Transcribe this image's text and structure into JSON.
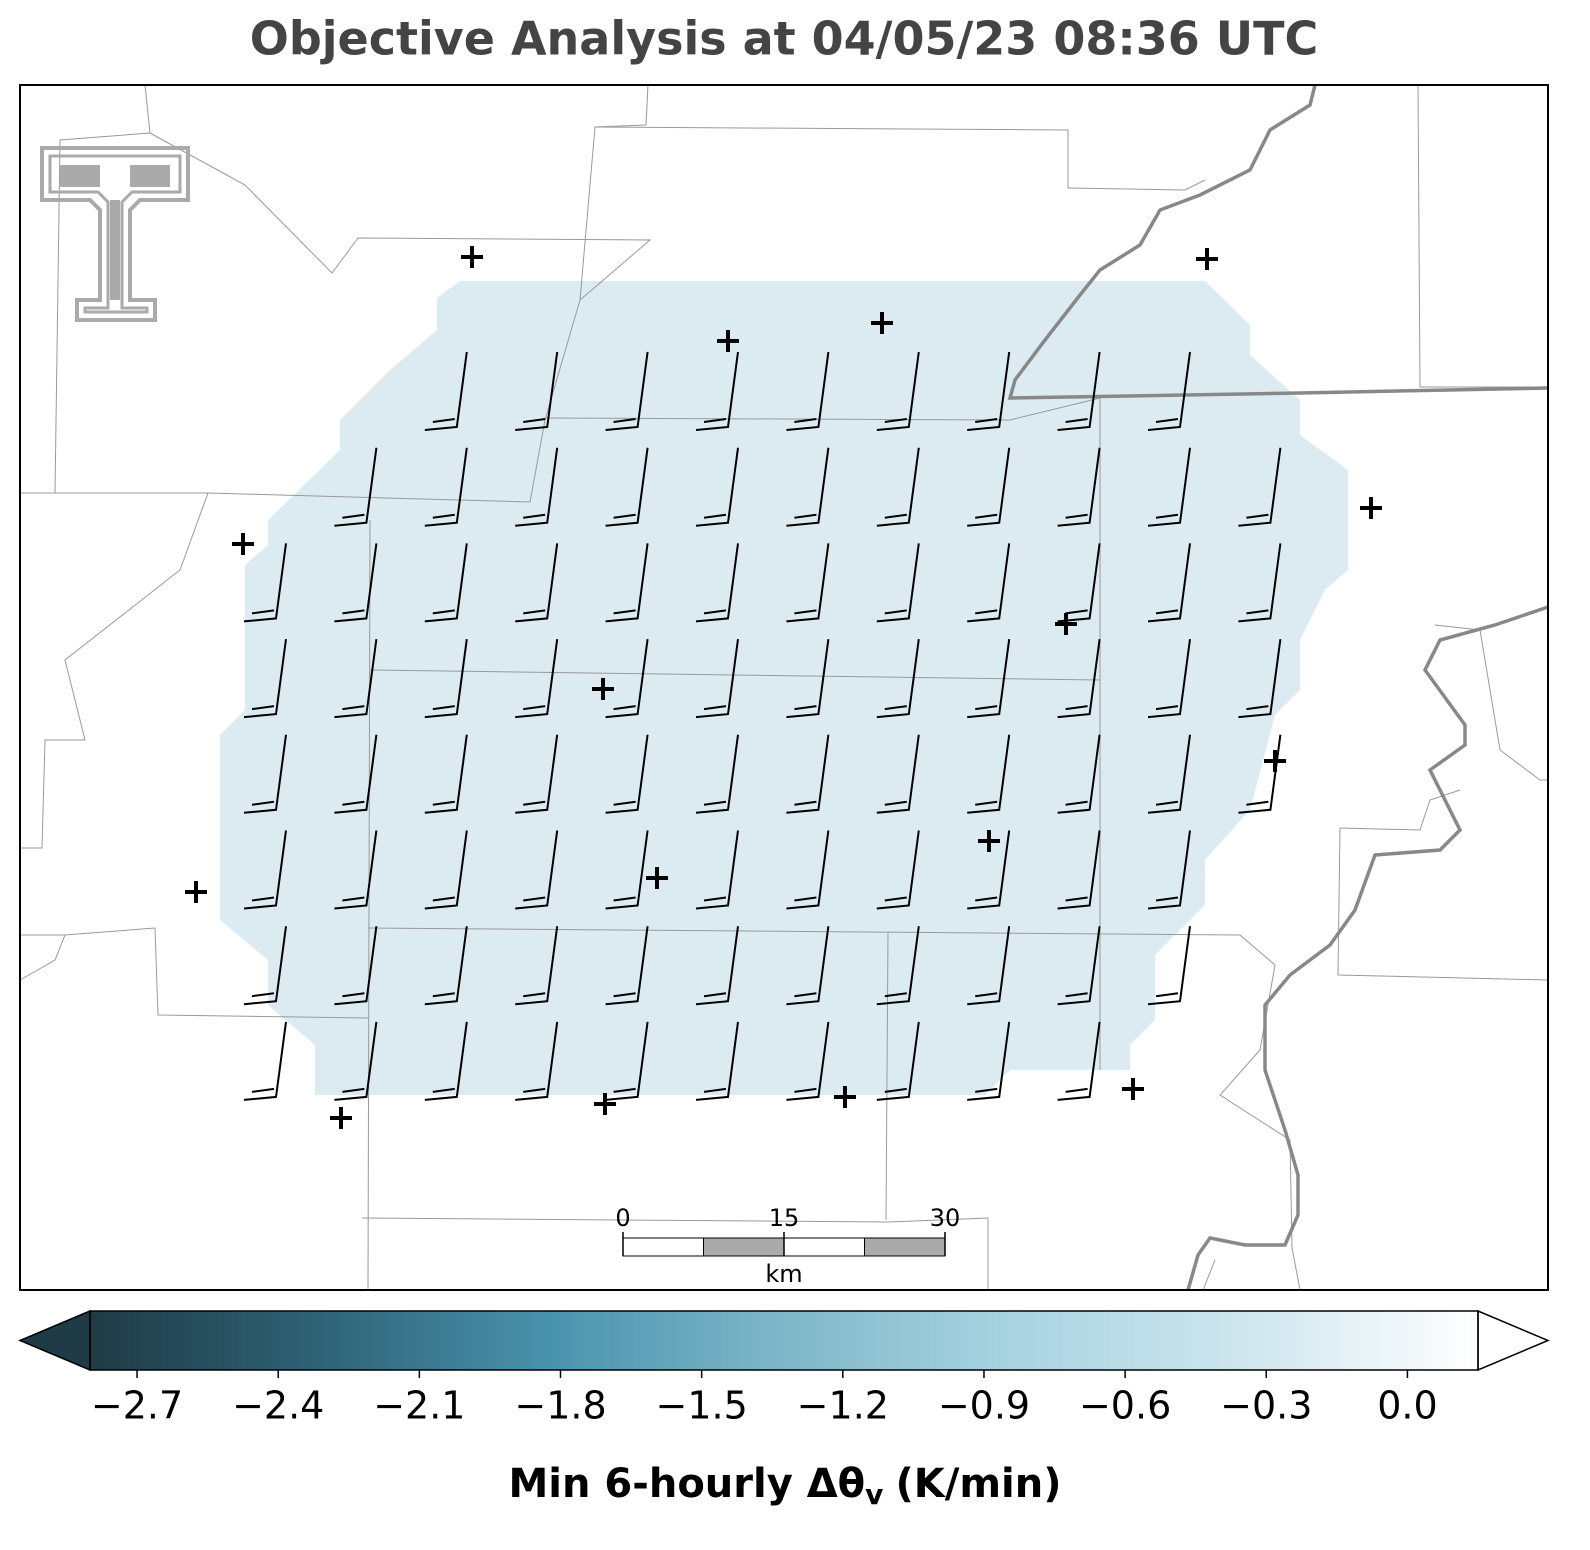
{
  "title": "Objective Analysis at 04/05/23 08:36 UTC",
  "colorbar": {
    "lim": [
      -2.8,
      0.15
    ],
    "extend": "both",
    "colors": [
      "#1f3b45",
      "#2f6377",
      "#4a93ad",
      "#7fb7c9",
      "#a9d4e1",
      "#cfe6ee",
      "#ffffff"
    ],
    "ticks": [
      {
        "value": -2.7,
        "label": "−2.7"
      },
      {
        "value": -2.4,
        "label": "−2.4"
      },
      {
        "value": -2.1,
        "label": "−2.1"
      },
      {
        "value": -1.8,
        "label": "−1.8"
      },
      {
        "value": -1.5,
        "label": "−1.5"
      },
      {
        "value": -1.2,
        "label": "−1.2"
      },
      {
        "value": -0.9,
        "label": "−0.9"
      },
      {
        "value": -0.6,
        "label": "−0.6"
      },
      {
        "value": -0.3,
        "label": "−0.3"
      },
      {
        "value": 0,
        "label": "0.0"
      }
    ],
    "label": [
      "Min 6-hourly Δθ",
      "v",
      "(K/min)"
    ]
  },
  "scale_bar": {
    "ticks": [
      0,
      15,
      30
    ],
    "unit": "km"
  }
}
